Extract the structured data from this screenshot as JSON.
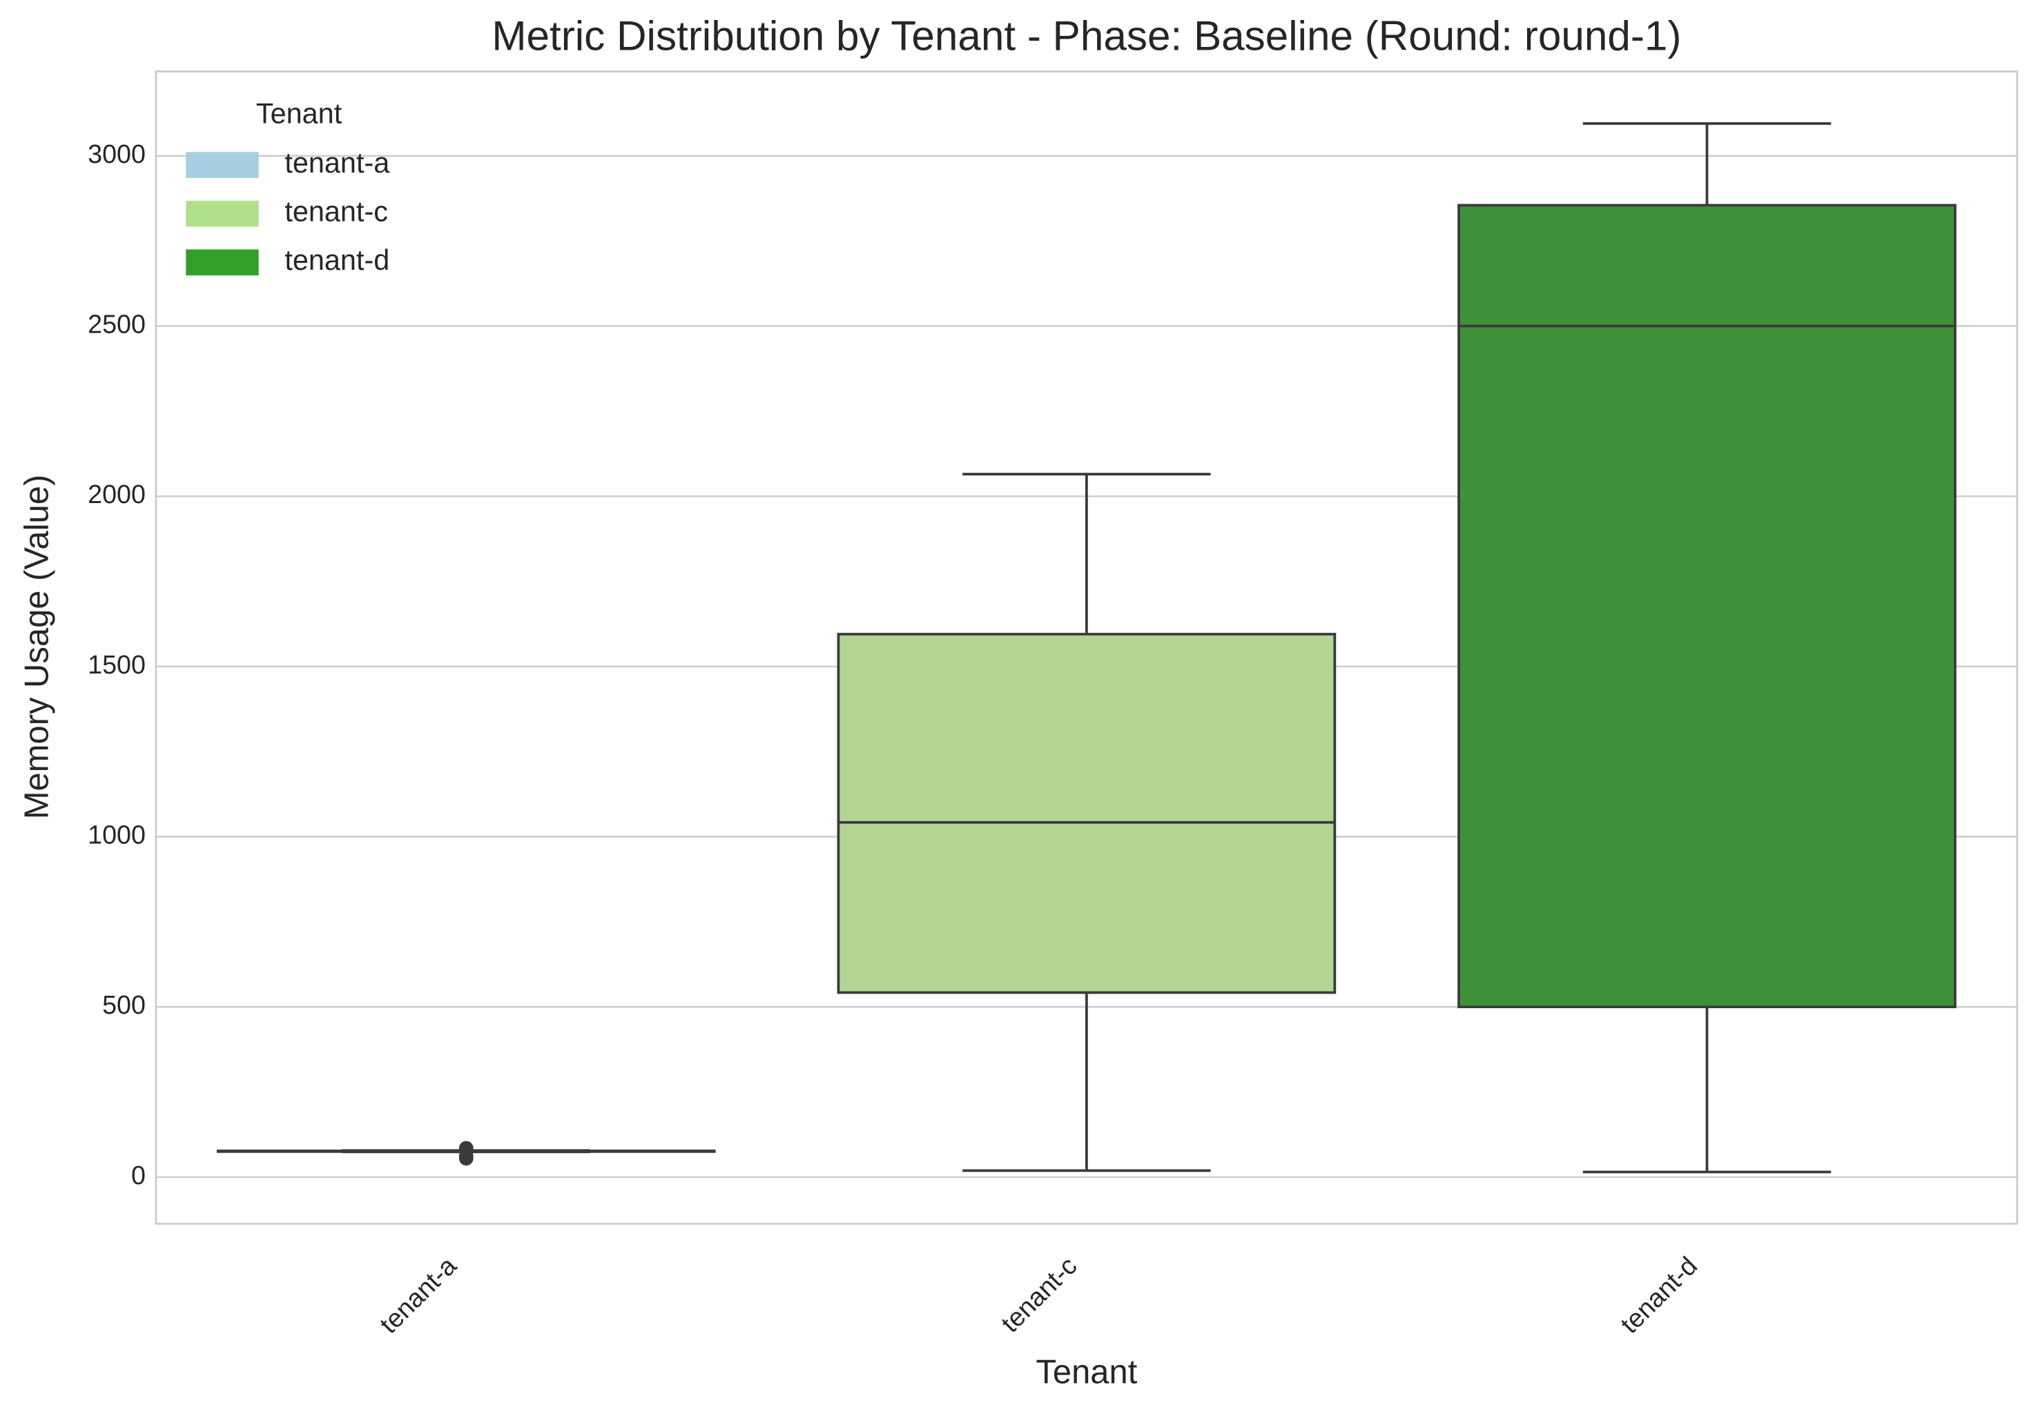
{
  "chart_data": {
    "type": "box",
    "title": "Metric Distribution by Tenant - Phase: Baseline (Round: round-1)",
    "x_label": "Tenant",
    "y_label": "Memory Usage (Value)",
    "categories": [
      "tenant-a",
      "tenant-c",
      "tenant-d"
    ],
    "legend_title": "Tenant",
    "legend": "upper left",
    "grid": true,
    "ylim": [
      -137,
      3248
    ],
    "yticks": [
      0,
      500,
      1000,
      1500,
      2000,
      2500,
      3000
    ],
    "series": [
      {
        "name": "tenant-a",
        "color": "#a6cee3",
        "box_color": "#9fb8c6",
        "whisker_low": 74,
        "q1": 75,
        "median": 76,
        "q3": 77,
        "whisker_high": 78,
        "outliers": [
          55,
          62,
          85
        ]
      },
      {
        "name": "tenant-c",
        "color": "#b2df8a",
        "box_color": "#b4d494",
        "whisker_low": 19,
        "q1": 542,
        "median": 1042,
        "q3": 1595,
        "whisker_high": 2065,
        "outliers": []
      },
      {
        "name": "tenant-d",
        "color": "#33a02c",
        "box_color": "#3f913a",
        "whisker_low": 15,
        "q1": 500,
        "median": 2500,
        "q3": 2855,
        "whisker_high": 3095,
        "outliers": []
      }
    ]
  }
}
